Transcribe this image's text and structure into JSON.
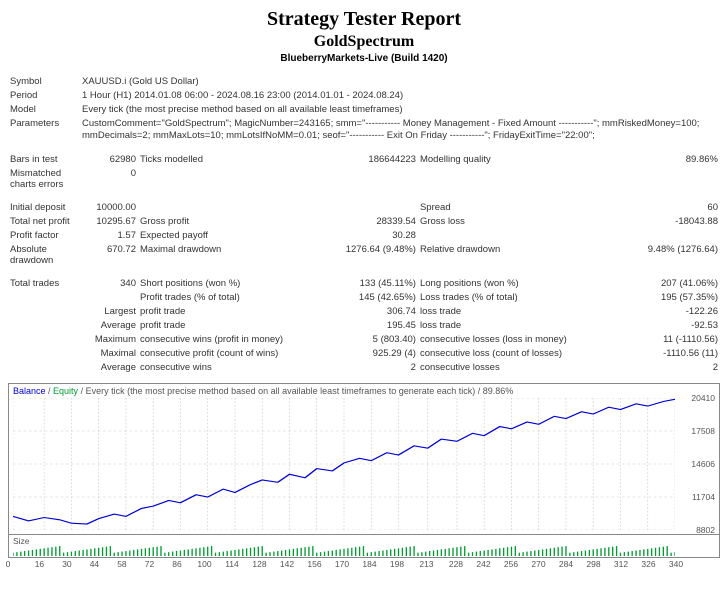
{
  "header": {
    "title": "Strategy Tester Report",
    "strategy": "GoldSpectrum",
    "account": "BlueberryMarkets-Live (Build 1420)"
  },
  "top": {
    "symbol_lbl": "Symbol",
    "symbol_val": "XAUUSD.i (Gold US Dollar)",
    "period_lbl": "Period",
    "period_val": "1 Hour (H1) 2014.01.08 06:00 - 2024.08.16 23:00 (2014.01.01 - 2024.08.24)",
    "model_lbl": "Model",
    "model_val": "Every tick (the most precise method based on all available least timeframes)",
    "param_lbl": "Parameters",
    "param_val": "CustomComment=\"GoldSpectrum\"; MagicNumber=243165; smm=\"----------- Money Management - Fixed Amount -----------\"; mmRiskedMoney=100; mmDecimals=2; mmMaxLots=10; mmLotsIfNoMM=0.01; seof=\"----------- Exit On Friday -----------\"; FridayExitTime=\"22:00\";"
  },
  "r1": {
    "c1l": "Bars in test",
    "c1v": "62980",
    "c2l": "Ticks modelled",
    "c2v": "186644223",
    "c3l": "Modelling quality",
    "c3v": "89.86%"
  },
  "r2": {
    "c1l": "Mismatched charts errors",
    "c1v": "0",
    "c2l": "",
    "c2v": "",
    "c3l": "",
    "c3v": ""
  },
  "r3": {
    "c1l": "Initial deposit",
    "c1v": "10000.00",
    "c2l": "",
    "c2v": "",
    "c3l": "Spread",
    "c3v": "60"
  },
  "r4": {
    "c1l": "Total net profit",
    "c1v": "10295.67",
    "c2l": "Gross profit",
    "c2v": "28339.54",
    "c3l": "Gross loss",
    "c3v": "-18043.88"
  },
  "r5": {
    "c1l": "Profit factor",
    "c1v": "1.57",
    "c2l": "Expected payoff",
    "c2v": "30.28",
    "c3l": "",
    "c3v": ""
  },
  "r6": {
    "c1l": "Absolute drawdown",
    "c1v": "670.72",
    "c2l": "Maximal drawdown",
    "c2v": "1276.64 (9.48%)",
    "c3l": "Relative drawdown",
    "c3v": "9.48% (1276.64)"
  },
  "r7": {
    "c1l": "Total trades",
    "c1v": "340",
    "c2l": "Short positions (won %)",
    "c2v": "133 (45.11%)",
    "c3l": "Long positions (won %)",
    "c3v": "207 (41.06%)"
  },
  "r8": {
    "c1l": "",
    "c1v": "",
    "c2l": "Profit trades (% of total)",
    "c2v": "145 (42.65%)",
    "c3l": "Loss trades (% of total)",
    "c3v": "195 (57.35%)"
  },
  "r9": {
    "c1l": "",
    "c1v": "Largest",
    "c2l": "profit trade",
    "c2v": "306.74",
    "c3l": "loss trade",
    "c3v": "-122.26"
  },
  "r10": {
    "c1l": "",
    "c1v": "Average",
    "c2l": "profit trade",
    "c2v": "195.45",
    "c3l": "loss trade",
    "c3v": "-92.53"
  },
  "r11": {
    "c1l": "",
    "c1v": "Maximum",
    "c2l": "consecutive wins (profit in money)",
    "c2v": "5 (803.40)",
    "c3l": "consecutive losses (loss in money)",
    "c3v": "11 (-1110.56)"
  },
  "r12": {
    "c1l": "",
    "c1v": "Maximal",
    "c2l": "consecutive profit (count of wins)",
    "c2v": "925.29 (4)",
    "c3l": "consecutive loss (count of losses)",
    "c3v": "-1110.56 (11)"
  },
  "r13": {
    "c1l": "",
    "c1v": "Average",
    "c2l": "consecutive wins",
    "c2v": "2",
    "c3l": "consecutive losses",
    "c3v": "2"
  },
  "chart": {
    "legend_prefix": "Balance",
    "legend_sep": " / ",
    "legend_eq": "Equity",
    "legend_suffix": " / Every tick (the most precise method based on all available least timeframes to generate each tick) / 89.86%",
    "ymin": 8802,
    "ymax": 20410,
    "yticks": [
      8802,
      11704,
      14606,
      17508,
      20410
    ],
    "xticks": [
      0,
      16,
      30,
      44,
      58,
      72,
      86,
      100,
      114,
      128,
      142,
      156,
      170,
      184,
      198,
      213,
      228,
      242,
      256,
      270,
      284,
      298,
      312,
      326,
      340
    ],
    "line_color": "#0000cc",
    "grid_color": "#cccccc",
    "bg": "#ffffff",
    "points": [
      [
        0,
        10000
      ],
      [
        8,
        9600
      ],
      [
        16,
        9900
      ],
      [
        24,
        9700
      ],
      [
        30,
        9400
      ],
      [
        38,
        9329
      ],
      [
        44,
        9800
      ],
      [
        52,
        10200
      ],
      [
        58,
        10000
      ],
      [
        66,
        10700
      ],
      [
        72,
        10900
      ],
      [
        80,
        11400
      ],
      [
        86,
        11200
      ],
      [
        94,
        11900
      ],
      [
        100,
        11700
      ],
      [
        108,
        12400
      ],
      [
        114,
        12100
      ],
      [
        122,
        12800
      ],
      [
        128,
        13200
      ],
      [
        136,
        13000
      ],
      [
        142,
        13700
      ],
      [
        150,
        13400
      ],
      [
        156,
        14200
      ],
      [
        164,
        14000
      ],
      [
        170,
        14700
      ],
      [
        178,
        15100
      ],
      [
        184,
        14900
      ],
      [
        192,
        15600
      ],
      [
        198,
        15400
      ],
      [
        206,
        16200
      ],
      [
        213,
        16000
      ],
      [
        220,
        16800
      ],
      [
        228,
        16600
      ],
      [
        236,
        17300
      ],
      [
        242,
        17100
      ],
      [
        250,
        17900
      ],
      [
        256,
        17700
      ],
      [
        264,
        18300
      ],
      [
        270,
        18100
      ],
      [
        278,
        18800
      ],
      [
        284,
        18600
      ],
      [
        292,
        19200
      ],
      [
        298,
        19000
      ],
      [
        306,
        19600
      ],
      [
        312,
        19400
      ],
      [
        320,
        19900
      ],
      [
        326,
        19700
      ],
      [
        334,
        20100
      ],
      [
        340,
        20296
      ]
    ],
    "size_color": "#009933",
    "size_lbl": "Size"
  }
}
